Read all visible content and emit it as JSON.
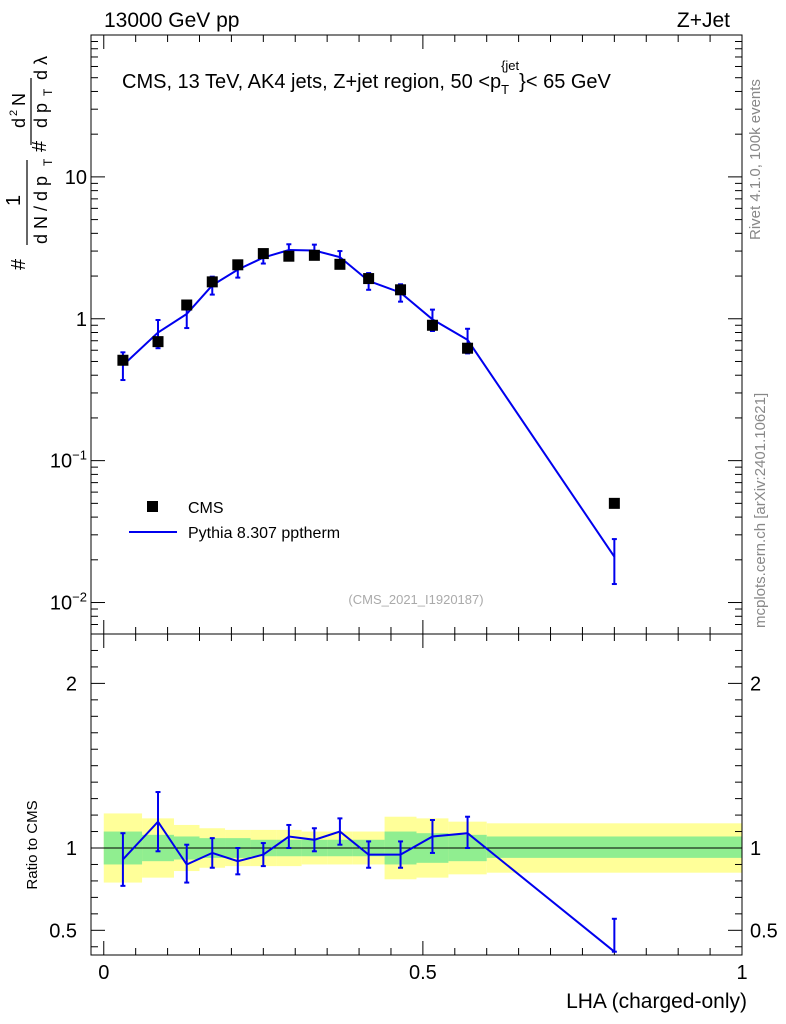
{
  "header": {
    "left": "13000 GeV pp",
    "right": "Z+Jet"
  },
  "side_labels": {
    "rivet": "Rivet 4.1.0,  100k events",
    "mcplots": "mcplots.cern.ch [arXiv:2401.10621]"
  },
  "colors": {
    "data": "#000000",
    "mc": "#0000ee",
    "band_green": "#90ee90",
    "band_yellow": "#ffff99"
  },
  "chart_data": [
    {
      "type": "scatter",
      "panel": "main",
      "title": "CMS, 13 TeV, AK4 jets, Z+jet region, 50 <p_T^{jet}< 65 GeV",
      "title_parts": {
        "main": "CMS, 13 TeV, AK4 jets, Z+jet region, 50 <p",
        "sub": "T",
        "sup": "{jet",
        "end": "}< 65 GeV"
      },
      "ylabel": "1/(dN/dp_T) d²N/(dp_T dλ)",
      "ylabel_parts": {
        "hash": "#",
        "one": "1",
        "dn": "d N / d p",
        "t": "T",
        "dsq": "d",
        "two": "2",
        "n": "N",
        "dp": "d p",
        "dl": "d λ"
      },
      "yscale": "log",
      "ylim": [
        0.006,
        100
      ],
      "xlim": [
        -0.02,
        1.0
      ],
      "y_ticks": [
        {
          "value": 0.01,
          "label": "10",
          "exp": "−2"
        },
        {
          "value": 0.1,
          "label": "10",
          "exp": "−1"
        },
        {
          "value": 1,
          "label": "1",
          "exp": ""
        },
        {
          "value": 10,
          "label": "10",
          "exp": ""
        }
      ],
      "watermark": "(CMS_2021_I1920187)",
      "legend": {
        "placement": "lower-left",
        "entries": [
          "CMS",
          "Pythia 8.307 pptherm"
        ]
      },
      "series": [
        {
          "name": "CMS",
          "style": "markers",
          "x": [
            0.03,
            0.085,
            0.13,
            0.17,
            0.21,
            0.25,
            0.29,
            0.33,
            0.37,
            0.415,
            0.465,
            0.515,
            0.57,
            0.8
          ],
          "y": [
            0.51,
            0.69,
            1.25,
            1.82,
            2.4,
            2.88,
            2.76,
            2.8,
            2.42,
            1.92,
            1.6,
            0.9,
            0.62,
            0.05
          ]
        },
        {
          "name": "Pythia 8.307 pptherm",
          "style": "line",
          "x": [
            0.03,
            0.085,
            0.13,
            0.17,
            0.21,
            0.25,
            0.29,
            0.33,
            0.37,
            0.415,
            0.465,
            0.515,
            0.57,
            0.8
          ],
          "y": [
            0.47,
            0.8,
            1.08,
            1.72,
            2.22,
            2.7,
            3.05,
            3.03,
            2.72,
            1.85,
            1.53,
            0.99,
            0.71,
            0.021
          ],
          "err_low": [
            0.37,
            0.62,
            0.86,
            1.48,
            1.95,
            2.45,
            2.75,
            2.75,
            2.45,
            1.6,
            1.32,
            0.82,
            0.57,
            0.0135
          ],
          "err_high": [
            0.58,
            0.98,
            1.33,
            1.98,
            2.5,
            2.97,
            3.35,
            3.33,
            3.0,
            2.1,
            1.75,
            1.16,
            0.85,
            0.028
          ]
        }
      ]
    },
    {
      "type": "line",
      "panel": "ratio",
      "ylabel": "Ratio to CMS",
      "xlabel": "LHA (charged-only)",
      "xlim": [
        -0.02,
        1.0
      ],
      "ylim": [
        0.35,
        2.3
      ],
      "x_ticks": [
        {
          "value": 0,
          "label": "0"
        },
        {
          "value": 0.5,
          "label": "0.5"
        },
        {
          "value": 1,
          "label": "1"
        }
      ],
      "y_ticks": [
        {
          "value": 0.5,
          "label": "0.5"
        },
        {
          "value": 1,
          "label": "1"
        },
        {
          "value": 2,
          "label": "2"
        }
      ],
      "bands": {
        "edges": [
          0.0,
          0.06,
          0.11,
          0.15,
          0.19,
          0.23,
          0.27,
          0.31,
          0.35,
          0.39,
          0.44,
          0.49,
          0.54,
          0.6,
          1.0
        ],
        "green_low": [
          0.9,
          0.92,
          0.93,
          0.94,
          0.94,
          0.95,
          0.95,
          0.95,
          0.95,
          0.95,
          0.9,
          0.91,
          0.92,
          0.94
        ],
        "green_high": [
          1.1,
          1.08,
          1.07,
          1.06,
          1.06,
          1.05,
          1.05,
          1.05,
          1.05,
          1.05,
          1.1,
          1.09,
          1.08,
          1.07
        ],
        "yellow_low": [
          0.79,
          0.82,
          0.86,
          0.88,
          0.89,
          0.89,
          0.89,
          0.9,
          0.9,
          0.9,
          0.81,
          0.82,
          0.84,
          0.85
        ],
        "yellow_high": [
          1.21,
          1.18,
          1.14,
          1.12,
          1.11,
          1.11,
          1.11,
          1.1,
          1.1,
          1.1,
          1.19,
          1.18,
          1.16,
          1.15
        ]
      },
      "series": [
        {
          "name": "Pythia 8.307 pptherm / CMS",
          "x": [
            0.03,
            0.085,
            0.13,
            0.17,
            0.21,
            0.25,
            0.29,
            0.33,
            0.37,
            0.415,
            0.465,
            0.515,
            0.57,
            0.8
          ],
          "y": [
            0.93,
            1.16,
            0.9,
            0.97,
            0.92,
            0.96,
            1.07,
            1.05,
            1.1,
            0.96,
            0.96,
            1.07,
            1.09,
            0.37
          ],
          "err_low": [
            0.77,
            0.98,
            0.79,
            0.88,
            0.84,
            0.89,
            1.0,
            0.98,
            1.02,
            0.88,
            0.88,
            0.97,
            1.0,
            0.37
          ],
          "err_high": [
            1.09,
            1.34,
            1.02,
            1.06,
            1.0,
            1.03,
            1.14,
            1.12,
            1.18,
            1.04,
            1.04,
            1.17,
            1.19,
            0.57
          ]
        }
      ]
    }
  ]
}
